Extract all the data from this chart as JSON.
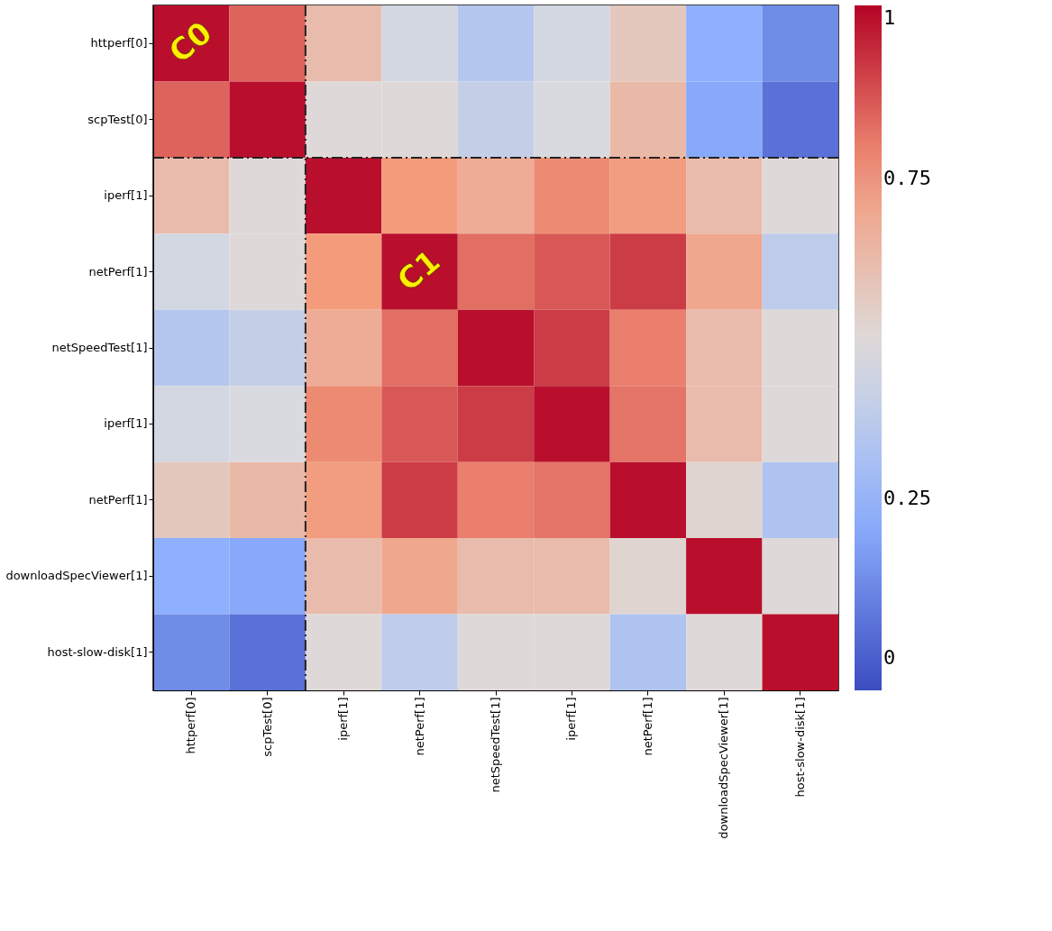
{
  "chart_data": {
    "type": "heatmap",
    "categories": [
      "httperf[0]",
      "scpTest[0]",
      "iperf[1]",
      "netPerf[1]",
      "netSpeedTest[1]",
      "iperf[1]",
      "netPerf[1]",
      "downloadSpecViewer[1]",
      "host-slow-disk[1]"
    ],
    "y_categories": [
      "httperf[0]",
      "scpTest[0]",
      "iperf[1]",
      "netPerf[1]",
      "netSpeedTest[1]",
      "iperf[1]",
      "netPerf[1]",
      "downloadSpecViewer[1]",
      "host-slow-disk[1]"
    ],
    "cells": [
      [
        1,
        0.85,
        0.62,
        0.45,
        0.35,
        0.45,
        0.57,
        0.22,
        0.12
      ],
      [
        0.85,
        1,
        0.5,
        0.5,
        0.4,
        0.47,
        0.63,
        0.2,
        0.05
      ],
      [
        0.62,
        0.5,
        1,
        0.75,
        0.68,
        0.78,
        0.74,
        0.62,
        0.5
      ],
      [
        0.45,
        0.5,
        0.75,
        1,
        0.83,
        0.87,
        0.92,
        0.7,
        0.38
      ],
      [
        0.35,
        0.4,
        0.68,
        0.83,
        1,
        0.92,
        0.8,
        0.62,
        0.5
      ],
      [
        0.45,
        0.47,
        0.78,
        0.87,
        0.92,
        1,
        0.82,
        0.62,
        0.5
      ],
      [
        0.57,
        0.63,
        0.74,
        0.92,
        0.8,
        0.82,
        1,
        0.52,
        0.33
      ],
      [
        0.22,
        0.2,
        0.62,
        0.7,
        0.62,
        0.62,
        0.52,
        1,
        0.5
      ],
      [
        0.12,
        0.05,
        0.5,
        0.38,
        0.5,
        0.5,
        0.33,
        0.5,
        1
      ]
    ],
    "clim": [
      -0.05,
      1.02
    ],
    "cticks": [
      0,
      0.25,
      0.75,
      1
    ],
    "annotations": [
      "C0",
      "C1"
    ]
  }
}
